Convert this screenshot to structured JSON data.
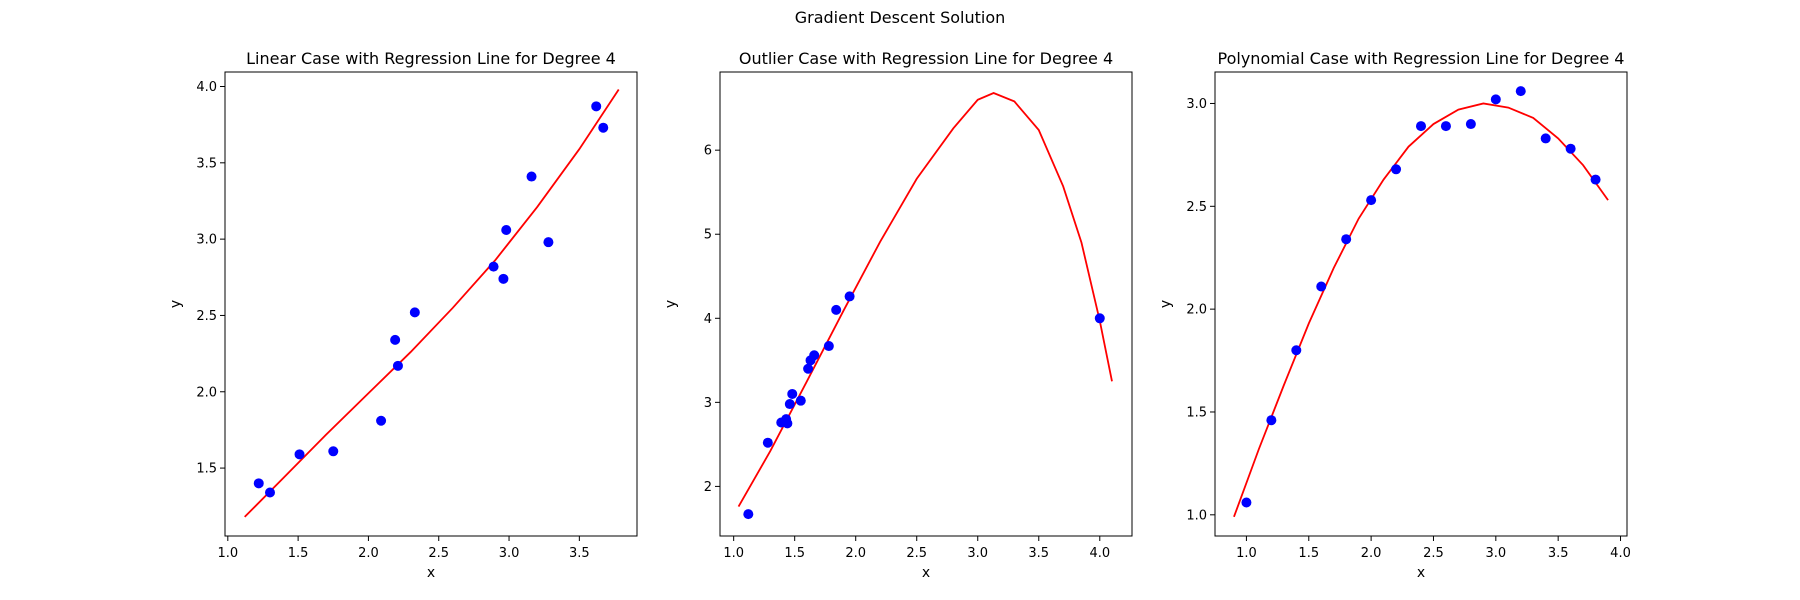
{
  "suptitle": "Gradient Descent Solution",
  "colors": {
    "points": "#0000ff",
    "line": "#ff0000"
  },
  "chart_data": [
    {
      "type": "scatter",
      "title": "Linear Case with Regression Line for Degree 4",
      "xlabel": "x",
      "ylabel": "y",
      "xlim": [
        0.98,
        3.91
      ],
      "ylim": [
        1.055,
        4.095
      ],
      "xticks": [
        "1.0",
        "1.5",
        "2.0",
        "2.5",
        "3.0",
        "3.5"
      ],
      "yticks": [
        "1.5",
        "2.0",
        "2.5",
        "3.0",
        "3.5",
        "4.0"
      ],
      "points": [
        [
          1.22,
          1.4
        ],
        [
          1.3,
          1.34
        ],
        [
          1.51,
          1.59
        ],
        [
          1.75,
          1.61
        ],
        [
          2.09,
          1.81
        ],
        [
          2.19,
          2.34
        ],
        [
          2.21,
          2.17
        ],
        [
          2.33,
          2.52
        ],
        [
          2.89,
          2.82
        ],
        [
          2.96,
          2.74
        ],
        [
          2.98,
          3.06
        ],
        [
          3.16,
          3.41
        ],
        [
          3.28,
          2.98
        ],
        [
          3.62,
          3.87
        ],
        [
          3.67,
          3.73
        ]
      ],
      "curve": [
        [
          1.12,
          1.18
        ],
        [
          1.4,
          1.44
        ],
        [
          1.7,
          1.72
        ],
        [
          2.0,
          1.99
        ],
        [
          2.3,
          2.26
        ],
        [
          2.6,
          2.55
        ],
        [
          2.9,
          2.86
        ],
        [
          3.2,
          3.21
        ],
        [
          3.5,
          3.59
        ],
        [
          3.78,
          3.98
        ]
      ]
    },
    {
      "type": "scatter",
      "title": "Outlier Case with Regression Line for Degree 4",
      "xlabel": "x",
      "ylabel": "y",
      "xlim": [
        0.888,
        4.264
      ],
      "ylim": [
        1.41,
        6.93
      ],
      "xticks": [
        "1.0",
        "1.5",
        "2.0",
        "2.5",
        "3.0",
        "3.5",
        "4.0"
      ],
      "yticks": [
        "2",
        "3",
        "4",
        "5",
        "6"
      ],
      "points": [
        [
          1.12,
          1.67
        ],
        [
          1.28,
          2.52
        ],
        [
          1.39,
          2.76
        ],
        [
          1.43,
          2.8
        ],
        [
          1.44,
          2.75
        ],
        [
          1.46,
          2.98
        ],
        [
          1.48,
          3.1
        ],
        [
          1.55,
          3.02
        ],
        [
          1.61,
          3.4
        ],
        [
          1.63,
          3.5
        ],
        [
          1.66,
          3.56
        ],
        [
          1.78,
          3.67
        ],
        [
          1.84,
          4.1
        ],
        [
          1.95,
          4.26
        ],
        [
          4.0,
          4.0
        ]
      ],
      "curve": [
        [
          1.04,
          1.76
        ],
        [
          1.3,
          2.42
        ],
        [
          1.6,
          3.25
        ],
        [
          1.9,
          4.09
        ],
        [
          2.2,
          4.91
        ],
        [
          2.5,
          5.66
        ],
        [
          2.8,
          6.26
        ],
        [
          3.0,
          6.6
        ],
        [
          3.13,
          6.68
        ],
        [
          3.3,
          6.58
        ],
        [
          3.5,
          6.24
        ],
        [
          3.7,
          5.57
        ],
        [
          3.85,
          4.9
        ],
        [
          4.0,
          3.97
        ],
        [
          4.1,
          3.25
        ]
      ]
    },
    {
      "type": "scatter",
      "title": "Polynomial Case with Regression Line for Degree 4",
      "xlabel": "x",
      "ylabel": "y",
      "xlim": [
        0.748,
        4.052
      ],
      "ylim": [
        0.897,
        3.153
      ],
      "xticks": [
        "1.0",
        "1.5",
        "2.0",
        "2.5",
        "3.0",
        "3.5",
        "4.0"
      ],
      "yticks": [
        "1.0",
        "1.5",
        "2.0",
        "2.5",
        "3.0"
      ],
      "points": [
        [
          1.0,
          1.06
        ],
        [
          1.2,
          1.46
        ],
        [
          1.4,
          1.8
        ],
        [
          1.6,
          2.11
        ],
        [
          1.8,
          2.34
        ],
        [
          2.0,
          2.53
        ],
        [
          2.2,
          2.68
        ],
        [
          2.4,
          2.89
        ],
        [
          2.6,
          2.89
        ],
        [
          2.8,
          2.9
        ],
        [
          3.0,
          3.02
        ],
        [
          3.2,
          3.06
        ],
        [
          3.4,
          2.83
        ],
        [
          3.6,
          2.78
        ],
        [
          3.8,
          2.63
        ]
      ],
      "curve": [
        [
          0.9,
          0.99
        ],
        [
          1.1,
          1.32
        ],
        [
          1.3,
          1.63
        ],
        [
          1.5,
          1.93
        ],
        [
          1.7,
          2.2
        ],
        [
          1.9,
          2.44
        ],
        [
          2.1,
          2.63
        ],
        [
          2.3,
          2.79
        ],
        [
          2.5,
          2.9
        ],
        [
          2.7,
          2.97
        ],
        [
          2.9,
          3.0
        ],
        [
          3.1,
          2.98
        ],
        [
          3.3,
          2.93
        ],
        [
          3.5,
          2.83
        ],
        [
          3.7,
          2.7
        ],
        [
          3.9,
          2.53
        ]
      ]
    }
  ]
}
